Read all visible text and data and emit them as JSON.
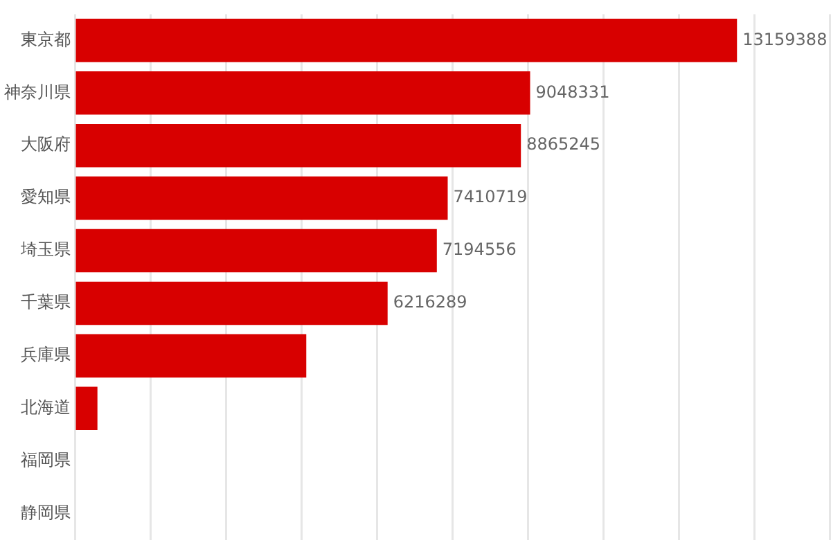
{
  "chart_data": {
    "type": "bar",
    "orientation": "horizontal",
    "categories": [
      "東京都",
      "神奈川県",
      "大阪府",
      "愛知県",
      "埼玉県",
      "千葉県",
      "兵庫県",
      "北海道",
      "福岡県",
      "静岡県"
    ],
    "values": [
      13159388,
      9048331,
      8865245,
      7410719,
      7194556,
      6216289,
      4600000,
      450000,
      null,
      null
    ],
    "value_labels": [
      "13159388",
      "9048331",
      "8865245",
      "7410719",
      "7194556",
      "6216289",
      null,
      null,
      null,
      null
    ],
    "color": "#d80000",
    "xlim": [
      0,
      15000000
    ],
    "xticks": [
      {
        "value": 0,
        "label": null
      },
      {
        "value": 1500000,
        "label": null
      },
      {
        "value": 3000000,
        "label": null
      },
      {
        "value": 4500000,
        "label": null
      },
      {
        "value": 6000000,
        "label": null
      },
      {
        "value": 7500000,
        "label": null
      },
      {
        "value": 9000000,
        "label": null
      },
      {
        "value": 10500000,
        "label": null
      },
      {
        "value": 12000000,
        "label": null
      },
      {
        "value": 13500000,
        "label": null
      },
      {
        "value": 15000000,
        "label": null
      }
    ],
    "grid": "x",
    "tick_labels": "y"
  }
}
